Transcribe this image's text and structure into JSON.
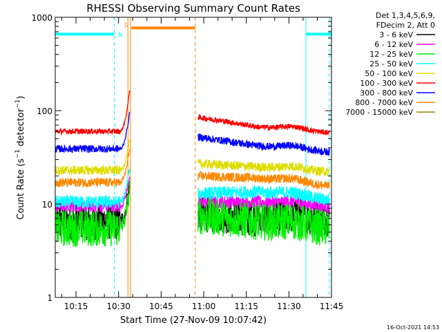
{
  "chart_data": {
    "type": "line",
    "title": "RHESSI Observing Summary Count Rates",
    "xlabel": "Start Time (27-Nov-09 10:07:42)",
    "ylabel_main": "Count Rate (s",
    "ylabel_sup1": "−1",
    "ylabel_mid": " detector",
    "ylabel_sup2": "−1",
    "ylabel_end": ")",
    "y_scale": "log",
    "ylim": [
      1,
      1000
    ],
    "xlim_minutes": [
      7.7,
      105
    ],
    "x_ticks": [
      {
        "label": "10:15",
        "minute": 15
      },
      {
        "label": "10:30",
        "minute": 30
      },
      {
        "label": "10:45",
        "minute": 45
      },
      {
        "label": "11:00",
        "minute": 60
      },
      {
        "label": "11:15",
        "minute": 75
      },
      {
        "label": "11:30",
        "minute": 90
      },
      {
        "label": "11:45",
        "minute": 105
      }
    ],
    "y_ticks": [
      {
        "label": "1",
        "value": 1
      },
      {
        "label": "10",
        "value": 10
      },
      {
        "label": "100",
        "value": 100
      },
      {
        "label": "1000",
        "value": 1000
      }
    ],
    "legend_title_1": "Det 1,3,4,5,6,9,",
    "legend_title_2": "FDecim 2, Att 0",
    "legend_placement": "right",
    "series": [
      {
        "name": "3 - 6 keV",
        "color": "#000000",
        "pre": 6.5,
        "post_start": 8.0,
        "post_mid": 7.0,
        "post_end": 7.2,
        "noise": 0.2
      },
      {
        "name": "6 - 12 keV",
        "color": "#ff00ff",
        "pre": 9.5,
        "post_start": 10.5,
        "post_mid": 10.5,
        "post_end": 9.3,
        "noise": 0.07
      },
      {
        "name": "12 - 25 keV",
        "color": "#00ee00",
        "pre": 5.5,
        "post_start": 7.5,
        "post_mid": 6.5,
        "post_end": 5.5,
        "noise": 0.2
      },
      {
        "name": "25 - 50 keV",
        "color": "#00ffff",
        "pre": 10.5,
        "post_start": 13,
        "post_mid": 13.5,
        "post_end": 11,
        "noise": 0.07
      },
      {
        "name": "50 - 100 keV",
        "color": "#dddd00",
        "pre": 23,
        "post_start": 27,
        "post_mid": 25,
        "post_end": 22,
        "noise": 0.05
      },
      {
        "name": "100 - 300 keV",
        "color": "#ff0000",
        "pre": 60,
        "post_start": 85,
        "post_mid": 67,
        "post_end": 58,
        "noise": 0.03
      },
      {
        "name": "300 - 800 keV",
        "color": "#0000ff",
        "pre": 39,
        "post_start": 52,
        "post_mid": 42,
        "post_end": 36,
        "noise": 0.04
      },
      {
        "name": "800 - 7000 keV",
        "color": "#ff8800",
        "pre": 17,
        "post_start": 20,
        "post_mid": 19,
        "post_end": 15.5,
        "noise": 0.05
      },
      {
        "name": "7000 - 15000 keV",
        "color": "#888800",
        "pre": null,
        "post_start": null,
        "post_mid": null,
        "post_end": null,
        "noise": 0
      }
    ],
    "spike_start_minute": 30.5,
    "data_gap_minutes": [
      34,
      58
    ],
    "post_gap_start_minute": 58,
    "flags": [
      {
        "label": "N",
        "color": "#00ffff",
        "segments": [
          [
            7.7,
            28.5
          ],
          [
            96,
            105
          ]
        ],
        "level": 660
      },
      {
        "label": "S",
        "color": "#ff8800",
        "segments": [
          [
            34.5,
            57
          ]
        ],
        "level": 770
      }
    ],
    "vlines": [
      {
        "minute": 7.7,
        "color": "#00ffff",
        "dashed": false
      },
      {
        "minute": 28.5,
        "color": "#00ffff",
        "dashed": true
      },
      {
        "minute": 33.3,
        "color": "#ff8800",
        "dashed": false
      },
      {
        "minute": 34.2,
        "color": "#ff8800",
        "dashed": false
      },
      {
        "minute": 57.0,
        "color": "#ff8800",
        "dashed": true
      },
      {
        "minute": 96.0,
        "color": "#00ffff",
        "dashed": false
      },
      {
        "minute": 104.3,
        "color": "#00ffff",
        "dashed": true
      }
    ],
    "grid": false,
    "timestamp": "16-Oct-2021 14:53"
  }
}
